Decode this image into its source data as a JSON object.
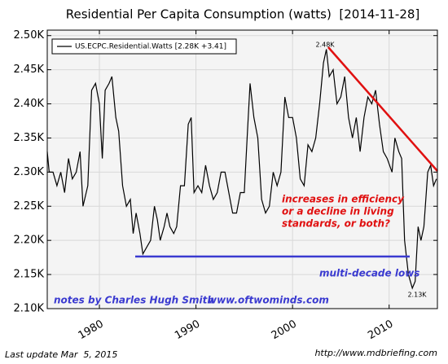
{
  "chart_data": {
    "type": "line",
    "title": "Residential Per Capita Consumption (watts)  [2014-11-28]",
    "x": [
      1974.6,
      1974.8,
      1975.2,
      1975.6,
      1976,
      1976.4,
      1976.8,
      1977.2,
      1977.6,
      1978,
      1978.3,
      1978.8,
      1979.2,
      1979.6,
      1980,
      1980.3,
      1980.6,
      1981,
      1981.3,
      1981.7,
      1982,
      1982.4,
      1982.8,
      1983.2,
      1983.5,
      1983.8,
      1984.2,
      1984.5,
      1984.9,
      1985.3,
      1985.7,
      1986,
      1986.3,
      1986.7,
      1987,
      1987.3,
      1987.7,
      1988,
      1988.4,
      1988.8,
      1989.2,
      1989.5,
      1989.8,
      1990.2,
      1990.6,
      1991,
      1991.4,
      1991.8,
      1992.2,
      1992.6,
      1993,
      1993.4,
      1993.8,
      1994.2,
      1994.6,
      1995,
      1995.3,
      1995.6,
      1996,
      1996.4,
      1996.8,
      1997.2,
      1997.6,
      1998,
      1998.4,
      1998.8,
      1999.2,
      1999.6,
      2000,
      2000.4,
      2000.8,
      2001.2,
      2001.6,
      2002,
      2002.4,
      2002.8,
      2003.2,
      2003.5,
      2003.8,
      2004.2,
      2004.6,
      2005,
      2005.4,
      2005.8,
      2006.2,
      2006.6,
      2007,
      2007.4,
      2007.8,
      2008.2,
      2008.6,
      2009,
      2009.4,
      2009.8,
      2010.3,
      2010.6,
      2011,
      2011.3,
      2011.6,
      2012,
      2012.4,
      2012.7,
      2013,
      2013.3,
      2013.6,
      2014,
      2014.3,
      2014.6,
      2014.9
    ],
    "series": [
      {
        "name": "US.ECPC.Residential.Watts [2.28K +3.41]",
        "color": "#000000",
        "values": [
          2.33,
          2.3,
          2.3,
          2.28,
          2.3,
          2.27,
          2.32,
          2.29,
          2.3,
          2.33,
          2.25,
          2.28,
          2.42,
          2.43,
          2.4,
          2.32,
          2.42,
          2.43,
          2.44,
          2.38,
          2.36,
          2.28,
          2.25,
          2.26,
          2.21,
          2.24,
          2.21,
          2.18,
          2.19,
          2.2,
          2.25,
          2.23,
          2.2,
          2.22,
          2.24,
          2.22,
          2.21,
          2.22,
          2.28,
          2.28,
          2.37,
          2.38,
          2.27,
          2.28,
          2.27,
          2.31,
          2.28,
          2.26,
          2.27,
          2.3,
          2.3,
          2.27,
          2.24,
          2.24,
          2.27,
          2.27,
          2.35,
          2.43,
          2.38,
          2.35,
          2.26,
          2.24,
          2.25,
          2.3,
          2.28,
          2.3,
          2.41,
          2.38,
          2.38,
          2.35,
          2.29,
          2.28,
          2.34,
          2.33,
          2.35,
          2.4,
          2.46,
          2.48,
          2.44,
          2.45,
          2.4,
          2.41,
          2.44,
          2.38,
          2.35,
          2.38,
          2.33,
          2.38,
          2.41,
          2.4,
          2.42,
          2.37,
          2.33,
          2.32,
          2.3,
          2.35,
          2.33,
          2.32,
          2.2,
          2.15,
          2.13,
          2.14,
          2.22,
          2.2,
          2.22,
          2.3,
          2.31,
          2.28,
          2.29
        ]
      }
    ],
    "xlim": [
      1974.6,
      2015
    ],
    "xticks": [
      1980,
      1990,
      2000,
      2010
    ],
    "ylim": [
      2.1,
      2.508
    ],
    "yticks": [
      {
        "value": 2.1,
        "label": "2.10K"
      },
      {
        "value": 2.15,
        "label": "2.15K"
      },
      {
        "value": 2.2,
        "label": "2.20K"
      },
      {
        "value": 2.25,
        "label": "2.25K"
      },
      {
        "value": 2.3,
        "label": "2.30K"
      },
      {
        "value": 2.35,
        "label": "2.35K"
      },
      {
        "value": 2.4,
        "label": "2.40K"
      },
      {
        "value": 2.45,
        "label": "2.45K"
      },
      {
        "value": 2.5,
        "label": "2.50K"
      }
    ],
    "grid": true,
    "legend": "upper left",
    "annotations": [
      "2.48K",
      "2.13K",
      "increases in efficiency",
      "or a decline in living",
      "standards, or both?",
      "multi-decade lows",
      "notes by Charles Hugh Smith",
      "www.oftwominds.com"
    ],
    "footer_left": "Last update Mar  5, 2015",
    "footer_right": "http://www.mdbriefing.com"
  }
}
